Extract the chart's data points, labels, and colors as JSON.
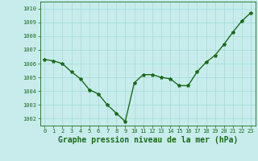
{
  "x": [
    0,
    1,
    2,
    3,
    4,
    5,
    6,
    7,
    8,
    9,
    10,
    11,
    12,
    13,
    14,
    15,
    16,
    17,
    18,
    19,
    20,
    21,
    22,
    23
  ],
  "y": [
    1006.3,
    1006.2,
    1006.0,
    1005.4,
    1004.9,
    1004.1,
    1003.8,
    1003.0,
    1002.4,
    1001.8,
    1004.6,
    1005.2,
    1005.2,
    1005.0,
    1004.9,
    1004.4,
    1004.4,
    1005.4,
    1006.1,
    1006.6,
    1007.4,
    1008.3,
    1009.1,
    1009.7
  ],
  "line_color": "#1a6b1a",
  "marker": "*",
  "bg_color": "#c8ecec",
  "grid_color": "#aadddd",
  "xlabel": "Graphe pression niveau de la mer (hPa)",
  "xlabel_color": "#1a6b1a",
  "ylim": [
    1001.5,
    1010.5
  ],
  "yticks": [
    1002,
    1003,
    1004,
    1005,
    1006,
    1007,
    1008,
    1009,
    1010
  ],
  "xticks": [
    0,
    1,
    2,
    3,
    4,
    5,
    6,
    7,
    8,
    9,
    10,
    11,
    12,
    13,
    14,
    15,
    16,
    17,
    18,
    19,
    20,
    21,
    22,
    23
  ],
  "tick_color": "#1a6b1a",
  "tick_fontsize": 5.0,
  "xlabel_fontsize": 7.0,
  "linewidth": 1.0,
  "markersize": 3.0
}
